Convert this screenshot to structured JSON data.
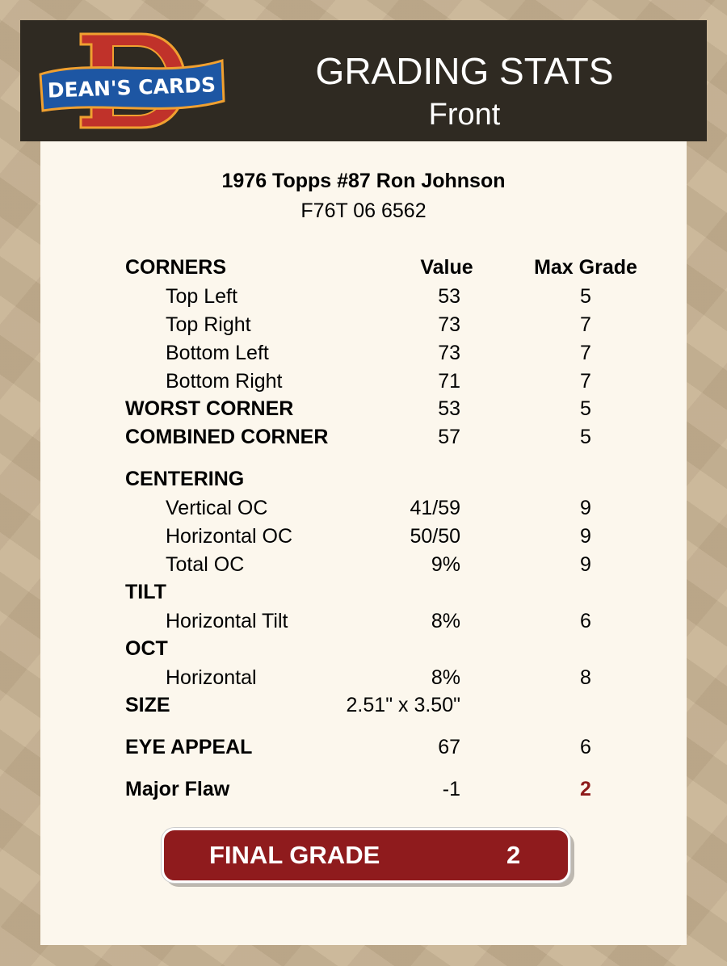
{
  "header": {
    "logo_text": "DEAN'S CARDS",
    "title": "GRADING STATS",
    "subtitle": "Front"
  },
  "card": {
    "name": "1976 Topps #87 Ron Johnson",
    "cert": "F76T 06 6562"
  },
  "columns": {
    "value": "Value",
    "max": "Max Grade"
  },
  "rows": [
    {
      "label": "CORNERS"
    },
    {
      "label": "Top Left",
      "value": "53",
      "max": "5"
    },
    {
      "label": "Top Right",
      "value": "73",
      "max": "7"
    },
    {
      "label": "Bottom Left",
      "value": "73",
      "max": "7"
    },
    {
      "label": "Bottom Right",
      "value": "71",
      "max": "7"
    },
    {
      "label": "WORST CORNER",
      "value": "53",
      "max": "5"
    },
    {
      "label": "COMBINED CORNER",
      "value": "57",
      "max": "5"
    },
    {
      "label": "CENTERING"
    },
    {
      "label": "Vertical OC",
      "value": "41/59",
      "max": "9"
    },
    {
      "label": "Horizontal OC",
      "value": "50/50",
      "max": "9"
    },
    {
      "label": "Total OC",
      "value": "9%",
      "max": "9"
    },
    {
      "label": "TILT"
    },
    {
      "label": "Horizontal Tilt",
      "value": "8%",
      "max": "6"
    },
    {
      "label": "OCT"
    },
    {
      "label": "Horizontal",
      "value": "8%",
      "max": "8"
    },
    {
      "label": "SIZE",
      "value": "2.51\" x 3.50\""
    },
    {
      "label": "EYE APPEAL",
      "value": "67",
      "max": "6"
    },
    {
      "label": "Major Flaw",
      "value": "-1",
      "max": "2"
    }
  ],
  "final": {
    "label": "FINAL GRADE",
    "value": "2"
  },
  "colors": {
    "header_bg": "#2f2a22",
    "accent_red": "#8f1b1d",
    "card_bg": "#fcf7ed"
  }
}
